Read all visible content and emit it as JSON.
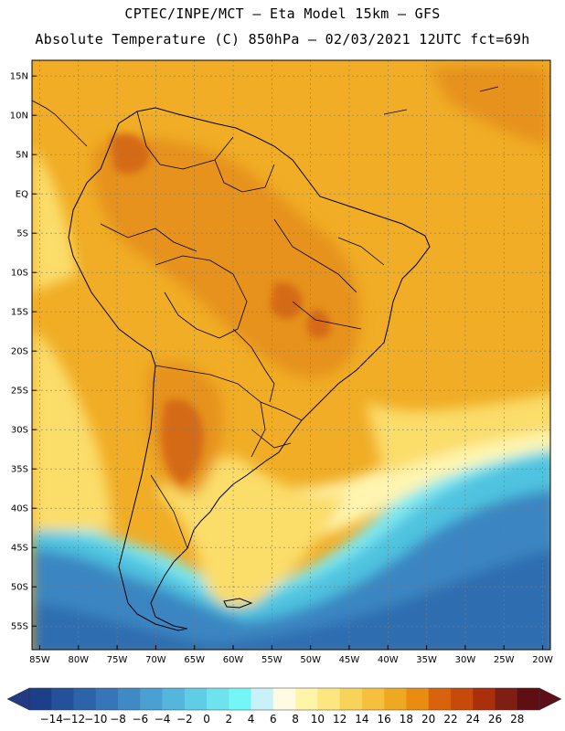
{
  "header": {
    "line1": "CPTEC/INPE/MCT –  Eta Model 15km – GFS",
    "line2": "Absolute Temperature (C) 850hPa – 02/03/2021 12UTC fct=69h"
  },
  "map": {
    "lon_range": [
      -86,
      -19
    ],
    "lat_range": [
      -58,
      17
    ],
    "lat_ticks": [
      {
        "v": 15,
        "label": "15N"
      },
      {
        "v": 10,
        "label": "10N"
      },
      {
        "v": 5,
        "label": "5N"
      },
      {
        "v": 0,
        "label": "EQ"
      },
      {
        "v": -5,
        "label": "5S"
      },
      {
        "v": -10,
        "label": "10S"
      },
      {
        "v": -15,
        "label": "15S"
      },
      {
        "v": -20,
        "label": "20S"
      },
      {
        "v": -25,
        "label": "25S"
      },
      {
        "v": -30,
        "label": "30S"
      },
      {
        "v": -35,
        "label": "35S"
      },
      {
        "v": -40,
        "label": "40S"
      },
      {
        "v": -45,
        "label": "45S"
      },
      {
        "v": -50,
        "label": "50S"
      },
      {
        "v": -55,
        "label": "55S"
      }
    ],
    "lon_ticks": [
      {
        "v": -85,
        "label": "85W"
      },
      {
        "v": -80,
        "label": "80W"
      },
      {
        "v": -75,
        "label": "75W"
      },
      {
        "v": -70,
        "label": "70W"
      },
      {
        "v": -65,
        "label": "65W"
      },
      {
        "v": -60,
        "label": "60W"
      },
      {
        "v": -55,
        "label": "55W"
      },
      {
        "v": -50,
        "label": "50W"
      },
      {
        "v": -45,
        "label": "45W"
      },
      {
        "v": -40,
        "label": "40W"
      },
      {
        "v": -35,
        "label": "35W"
      },
      {
        "v": -30,
        "label": "30W"
      },
      {
        "v": -25,
        "label": "25W"
      },
      {
        "v": -20,
        "label": "20W"
      }
    ]
  },
  "colorbar": {
    "labels": [
      "-14",
      "-12",
      "-10",
      "-8",
      "-6",
      "-4",
      "-2",
      "0",
      "2",
      "4",
      "6",
      "8",
      "10",
      "12",
      "14",
      "16",
      "18",
      "20",
      "22",
      "24",
      "26",
      "28"
    ],
    "colors": [
      "#1c3f8a",
      "#24519a",
      "#2d63a9",
      "#3676b8",
      "#3f8ac4",
      "#4aa0d0",
      "#55b6dc",
      "#5fcde6",
      "#6ee3ee",
      "#74f6f6",
      "#c9f2f8",
      "#fffbe3",
      "#fff5a8",
      "#ffe680",
      "#f8d35a",
      "#f4c03d",
      "#eea922",
      "#ea8c12",
      "#d9620c",
      "#c84a0a",
      "#a9300a",
      "#7f1f14",
      "#5f0f14"
    ],
    "low_color": "#243a82",
    "high_color": "#5c0f18"
  },
  "palette": {
    "ocean_deep": "#2f6db0",
    "ocean_mid": "#3a86c2",
    "ocean_cyan": "#4fc3e0",
    "ocean_light": "#7fe8f0",
    "pale": "#fff5b0",
    "yellow": "#fbdd6a",
    "light_orange": "#f5c04a",
    "orange": "#f0ad25",
    "dark_orange": "#e6921a",
    "red_orange": "#d56a16",
    "deep_red": "#c0521e"
  }
}
